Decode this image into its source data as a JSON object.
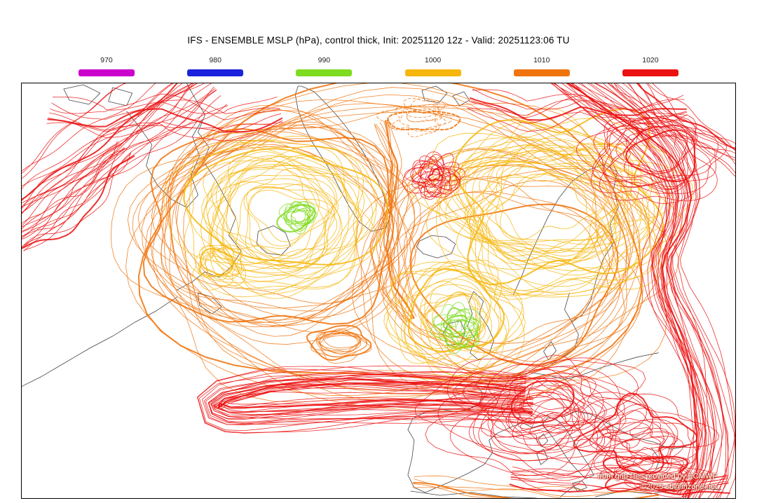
{
  "title": "IFS - ENSEMBLE MSLP (hPa), control thick, Init: 20251120 12z - Valid: 20251123:06 TU",
  "legend": {
    "items": [
      {
        "label": "970",
        "color": "#cc00cc"
      },
      {
        "label": "980",
        "color": "#1a22dc"
      },
      {
        "label": "990",
        "color": "#7edc20"
      },
      {
        "label": "1000",
        "color": "#f6b60c"
      },
      {
        "label": "1010",
        "color": "#f0740e"
      },
      {
        "label": "1020",
        "color": "#ec1212"
      }
    ]
  },
  "map": {
    "attribution_line1": "from grib files provided by ECMWF",
    "attribution_line2": "©2025 sb@irizone.net",
    "coast_color": "#3c3c3c",
    "border_color": "#000000",
    "background_color": "#ffffff"
  }
}
